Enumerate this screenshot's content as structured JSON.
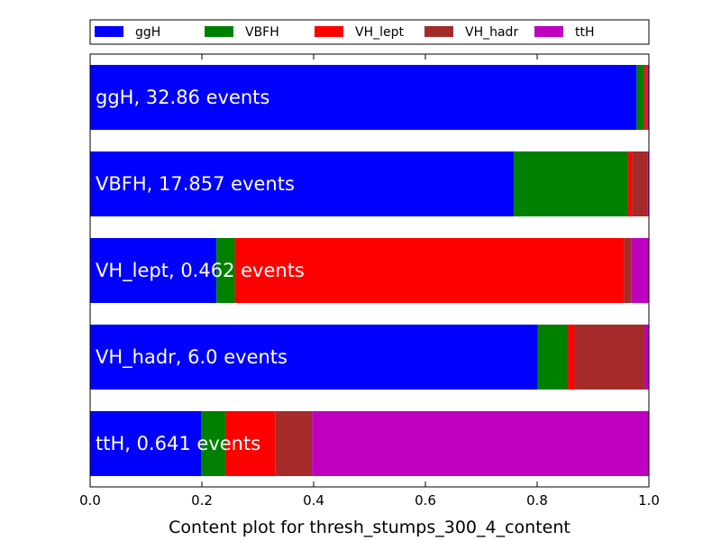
{
  "chart_data": {
    "type": "bar",
    "orientation": "horizontal",
    "stacked": true,
    "xlabel": "Content plot for thresh_stumps_300_4_content",
    "ylabel": "",
    "xlim": [
      0.0,
      1.0
    ],
    "xticks": [
      "0.0",
      "0.2",
      "0.4",
      "0.6",
      "0.8",
      "1.0"
    ],
    "grid": false,
    "legend_position": "top",
    "categories": [
      "ggH, 32.86 events",
      "VBFH, 17.857 events",
      "VH_lept, 0.462 events",
      "VH_hadr, 6.0 events",
      "ttH, 0.641 events"
    ],
    "series": [
      {
        "name": "ggH",
        "color": "#0000ff",
        "values": [
          0.978,
          0.758,
          0.226,
          0.801,
          0.199
        ]
      },
      {
        "name": "VBFH",
        "color": "#008000",
        "values": [
          0.013,
          0.205,
          0.033,
          0.054,
          0.043
        ]
      },
      {
        "name": "VH_lept",
        "color": "#ff0000",
        "values": [
          0.003,
          0.007,
          0.696,
          0.012,
          0.089
        ]
      },
      {
        "name": "VH_hadr",
        "color": "#a52a2a",
        "values": [
          0.003,
          0.027,
          0.014,
          0.125,
          0.066
        ]
      },
      {
        "name": "ttH",
        "color": "#bf00bf",
        "values": [
          0.003,
          0.003,
          0.031,
          0.008,
          0.603
        ]
      }
    ]
  }
}
